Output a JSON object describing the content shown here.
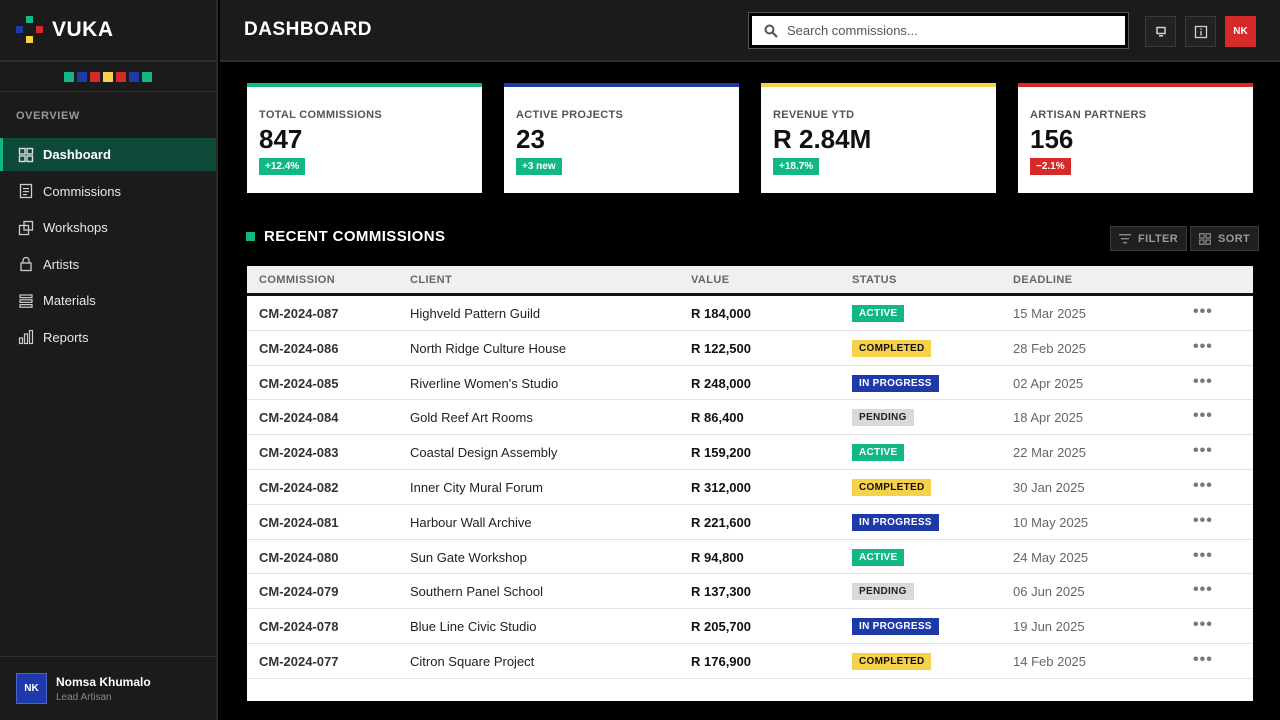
{
  "app": {
    "name": "VUKA"
  },
  "brand_swatches": [
    "#11b886",
    "#1e3aa8",
    "#d62a2a",
    "#f5d24a",
    "#d62a2a",
    "#1e3aa8",
    "#11b886"
  ],
  "sidebar": {
    "section_label": "OVERVIEW",
    "items": [
      {
        "label": "Dashboard",
        "icon": "grid-icon",
        "active": true
      },
      {
        "label": "Commissions",
        "icon": "document-icon",
        "active": false
      },
      {
        "label": "Workshops",
        "icon": "workshop-icon",
        "active": false
      },
      {
        "label": "Artists",
        "icon": "lock-person-icon",
        "active": false
      },
      {
        "label": "Materials",
        "icon": "layers-icon",
        "active": false
      },
      {
        "label": "Reports",
        "icon": "bar-chart-icon",
        "active": false
      }
    ],
    "user": {
      "initials": "NK",
      "name": "Nomsa Khumalo",
      "role": "Lead Artisan"
    }
  },
  "header": {
    "title": "DASHBOARD",
    "search_placeholder": "Search commissions...",
    "avatar_initials": "NK"
  },
  "stats": [
    {
      "label": "TOTAL COMMISSIONS",
      "value": "847",
      "badge": "+12.4%",
      "accent": "#11b886",
      "badge_color": "#11b886"
    },
    {
      "label": "ACTIVE PROJECTS",
      "value": "23",
      "badge": "+3 new",
      "accent": "#1e3aa8",
      "badge_color": "#11b886"
    },
    {
      "label": "REVENUE YTD",
      "value": "R 2.84M",
      "badge": "+18.7%",
      "accent": "#f5d24a",
      "badge_color": "#11b886"
    },
    {
      "label": "ARTISAN PARTNERS",
      "value": "156",
      "badge": "−2.1%",
      "accent": "#d62a2a",
      "badge_color": "#d62a2a"
    }
  ],
  "recent": {
    "title": "RECENT COMMISSIONS",
    "filter_label": "FILTER",
    "sort_label": "SORT",
    "columns": [
      "COMMISSION",
      "CLIENT",
      "VALUE",
      "STATUS",
      "DEADLINE"
    ],
    "rows": [
      {
        "id": "CM-2024-087",
        "client": "Highveld Pattern Guild",
        "value": "R 184,000",
        "status": "ACTIVE",
        "deadline": "15 Mar 2025"
      },
      {
        "id": "CM-2024-086",
        "client": "North Ridge Culture House",
        "value": "R 122,500",
        "status": "COMPLETED",
        "deadline": "28 Feb 2025"
      },
      {
        "id": "CM-2024-085",
        "client": "Riverline Women's Studio",
        "value": "R 248,000",
        "status": "IN PROGRESS",
        "deadline": "02 Apr 2025"
      },
      {
        "id": "CM-2024-084",
        "client": "Gold Reef Art Rooms",
        "value": "R 86,400",
        "status": "PENDING",
        "deadline": "18 Apr 2025"
      },
      {
        "id": "CM-2024-083",
        "client": "Coastal Design Assembly",
        "value": "R 159,200",
        "status": "ACTIVE",
        "deadline": "22 Mar 2025"
      },
      {
        "id": "CM-2024-082",
        "client": "Inner City Mural Forum",
        "value": "R 312,000",
        "status": "COMPLETED",
        "deadline": "30 Jan 2025"
      },
      {
        "id": "CM-2024-081",
        "client": "Harbour Wall Archive",
        "value": "R 221,600",
        "status": "IN PROGRESS",
        "deadline": "10 May 2025"
      },
      {
        "id": "CM-2024-080",
        "client": "Sun Gate Workshop",
        "value": "R 94,800",
        "status": "ACTIVE",
        "deadline": "24 May 2025"
      },
      {
        "id": "CM-2024-079",
        "client": "Southern Panel School",
        "value": "R 137,300",
        "status": "PENDING",
        "deadline": "06 Jun 2025"
      },
      {
        "id": "CM-2024-078",
        "client": "Blue Line Civic Studio",
        "value": "R 205,700",
        "status": "IN PROGRESS",
        "deadline": "19 Jun 2025"
      },
      {
        "id": "CM-2024-077",
        "client": "Citron Square Project",
        "value": "R 176,900",
        "status": "COMPLETED",
        "deadline": "14 Feb 2025"
      }
    ]
  },
  "status_colors": {
    "ACTIVE": {
      "bg": "#11b886",
      "fg": "#ffffff"
    },
    "COMPLETED": {
      "bg": "#f5d24a",
      "fg": "#111111"
    },
    "IN PROGRESS": {
      "bg": "#1e3aa8",
      "fg": "#ffffff"
    },
    "PENDING": {
      "bg": "#d9d9d9",
      "fg": "#222222"
    }
  }
}
